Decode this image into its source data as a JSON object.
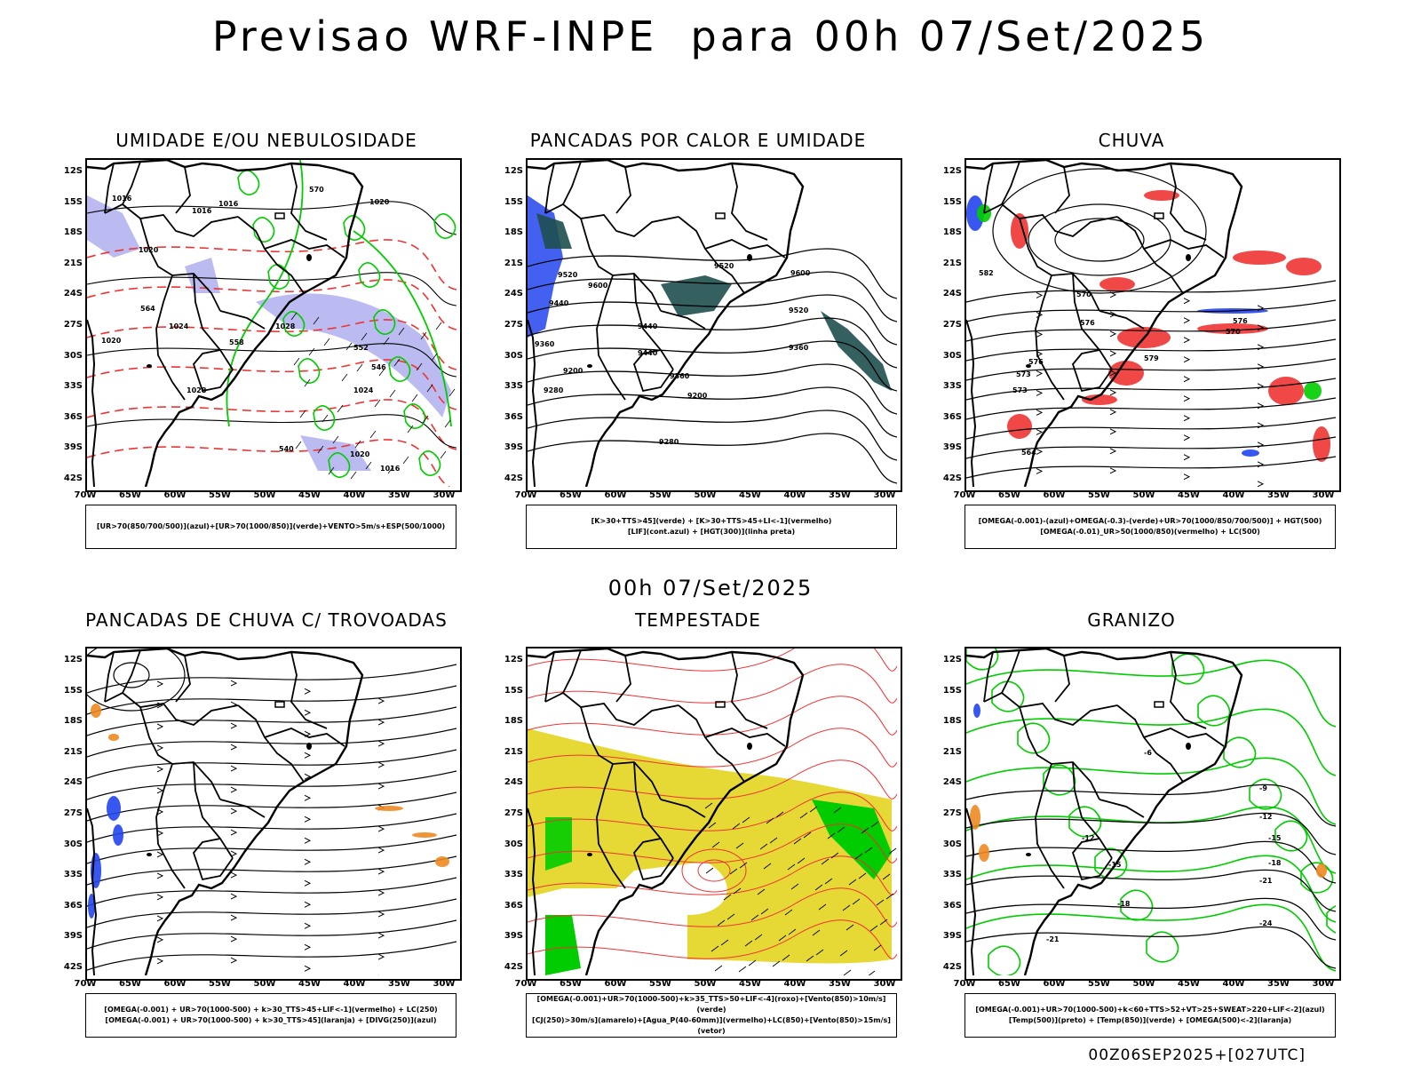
{
  "title": "Previsao WRF-INPE  para 00h 07/Set/2025",
  "subtitle": "00h 07/Set/2025",
  "footer": "00Z06SEP2025+[027UTC]",
  "lat_labels": [
    "12S",
    "15S",
    "18S",
    "21S",
    "24S",
    "27S",
    "30S",
    "33S",
    "36S",
    "39S",
    "42S"
  ],
  "lon_labels": [
    "70W",
    "65W",
    "60W",
    "55W",
    "50W",
    "45W",
    "40W",
    "35W",
    "30W"
  ],
  "panels": [
    {
      "title": "UMIDADE E/OU NEBULOSIDADE",
      "legend": [
        "[UR>70(850/700/500)](azul)+[UR>70(1000/850)](verde)+VENTO>5m/s+ESP(500/1000)"
      ]
    },
    {
      "title": "PANCADAS POR CALOR E UMIDADE",
      "legend": [
        "[K>30+TTS>45](verde) + [K>30+TTS>45+LI<-1](vermelho)",
        "[LIF](cont.azul) + [HGT(300)](linha preta)"
      ]
    },
    {
      "title": "CHUVA",
      "legend": [
        "[OMEGA(-0.001)-(azul)+OMEGA(-0.3)-(verde)+UR>70(1000/850/700/500)] + HGT(500)",
        "[OMEGA(-0.01)_UR>50(1000/850)(vermelho) + LC(500)"
      ]
    },
    {
      "title": "PANCADAS DE CHUVA C/ TROVOADAS",
      "legend": [
        "[OMEGA(-0.001) + UR>70(1000-500) + k>30_TTS>45+LIF<-1](vermelho) + LC(250)",
        "[OMEGA(-0.001) + UR>70(1000-500) + k>30_TTS>45](laranja) + [DIVG(250)](azul)"
      ]
    },
    {
      "title": "TEMPESTADE",
      "legend": [
        "[OMEGA(-0.001)+UR>70(1000-500)+k>35_TTS>50+LIF<-4](roxo)+[Vento(850)>10m/s](verde)",
        "[CJ(250)>30m/s](amarelo)+[Agua_P(40-60mm)](vermelho)+LC(850)+[Vento(850)>15m/s](vetor)"
      ]
    },
    {
      "title": "GRANIZO",
      "legend": [
        "[OMEGA(-0.001)+UR>70(1000-500)+k<60+TTS>52+VT>25+SWEAT>220+LIF<-2](azul)",
        "[Temp(500)](preto) + [Temp(850)](verde) + [OMEGA(500)<-2](laranja)"
      ]
    }
  ],
  "contour_labels": {
    "p1": [
      "1016",
      "1016",
      "1016",
      "1020",
      "1020",
      "1024",
      "1020",
      "1028",
      "1024",
      "1028",
      "1020",
      "1016",
      "570",
      "564",
      "558",
      "552",
      "546",
      "540"
    ],
    "p2": [
      "9520",
      "9600",
      "9440",
      "9360",
      "9520",
      "9600",
      "9520",
      "9440",
      "9360",
      "9440",
      "9360",
      "9280",
      "9200",
      "9280",
      "9200"
    ],
    "p3": [
      "576",
      "570",
      "573",
      "576",
      "570",
      "582",
      "564",
      "576",
      "579",
      "573"
    ],
    "p6": [
      "-9",
      "-12",
      "-15",
      "-18",
      "-21",
      "-24",
      "-6",
      "-12",
      "-15",
      "-18",
      "-21"
    ]
  },
  "colors": {
    "humidity_blue": "#aaaaee",
    "green": "#00cc00",
    "red": "#ee3333",
    "yellow": "#e6d935",
    "dark_teal": "#1f4f4f",
    "blue": "#2244ee",
    "orange": "#ee8822"
  }
}
